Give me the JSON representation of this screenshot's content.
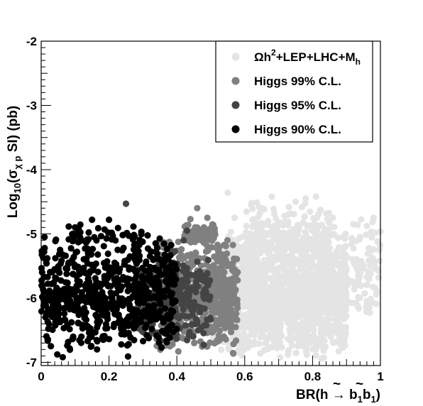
{
  "chart_data": {
    "type": "scatter",
    "title": "",
    "xlabel": {
      "prefix": "BR(h → ",
      "b1": "b",
      "sub1": "1",
      "b2": "b",
      "sub2": "1",
      "suffix": ")"
    },
    "ylabel": {
      "prefix": "Log",
      "sub": "10",
      "open": "(σ",
      "sub2": "χ p",
      "suffix": " SI) (pb)"
    },
    "xlim": [
      0,
      1
    ],
    "ylim": [
      -7.05,
      -2
    ],
    "x_ticks": [
      0,
      0.2,
      0.4,
      0.6,
      0.8,
      1
    ],
    "x_tick_labels": [
      "0",
      "0.2",
      "0.4",
      "0.6",
      "0.8",
      "1"
    ],
    "y_ticks": [
      -7,
      -6,
      -5,
      -4,
      -3,
      -2
    ],
    "y_tick_labels": [
      "-7",
      "-6",
      "-5",
      "-4",
      "-3",
      "-2"
    ],
    "grid": false,
    "legend_position": "top-right",
    "legend": [
      {
        "label_parts": [
          "Ω",
          "h",
          "2",
          "+LEP+LHC+M",
          "h"
        ],
        "color": "#e4e4e4"
      },
      {
        "label": "Higgs 99% C.L.",
        "color": "#808080"
      },
      {
        "label": "Higgs 95% C.L.",
        "color": "#444444"
      },
      {
        "label": "Higgs 90% C.L.",
        "color": "#000000"
      }
    ],
    "series": [
      {
        "name": "Ωh²+LEP+LHC+M_h",
        "color": "#e4e4e4",
        "regions": [
          {
            "x_range": [
              0.55,
              0.9
            ],
            "y_range": [
              -6.98,
              -4.9
            ],
            "count": 1500
          },
          {
            "x_range": [
              0.6,
              0.85
            ],
            "y_range": [
              -5.5,
              -4.5
            ],
            "count": 200
          },
          {
            "x_range": [
              0.85,
              1.0
            ],
            "y_range": [
              -6.4,
              -4.7
            ],
            "count": 120
          },
          {
            "x_range": [
              0.5,
              0.6
            ],
            "y_range": [
              -6.9,
              -5.0
            ],
            "count": 150
          }
        ],
        "outliers": [
          {
            "x": 0.55,
            "y": -4.36
          },
          {
            "x": 0.68,
            "y": -4.42
          },
          {
            "x": 0.78,
            "y": -4.45
          },
          {
            "x": 0.81,
            "y": -4.42
          },
          {
            "x": 0.75,
            "y": -4.5
          },
          {
            "x": 0.65,
            "y": -4.6
          },
          {
            "x": 0.92,
            "y": -4.85
          },
          {
            "x": 0.98,
            "y": -4.75
          },
          {
            "x": 0.94,
            "y": -5.05
          },
          {
            "x": 0.96,
            "y": -6.1
          },
          {
            "x": 0.99,
            "y": -5.55
          },
          {
            "x": 0.57,
            "y": -4.75
          }
        ]
      },
      {
        "name": "Higgs 99% C.L.",
        "color": "#808080",
        "regions": [
          {
            "x_range": [
              0.34,
              0.58
            ],
            "y_range": [
              -6.9,
              -5.0
            ],
            "count": 600
          },
          {
            "x_range": [
              0.42,
              0.52
            ],
            "y_range": [
              -5.2,
              -4.8
            ],
            "count": 50
          }
        ],
        "outliers": [
          {
            "x": 0.46,
            "y": -4.6
          },
          {
            "x": 0.44,
            "y": -4.77
          },
          {
            "x": 0.49,
            "y": -4.75
          }
        ]
      },
      {
        "name": "Higgs 95% C.L.",
        "color": "#444444",
        "regions": [
          {
            "x_range": [
              0.28,
              0.5
            ],
            "y_range": [
              -6.8,
              -5.2
            ],
            "count": 280
          }
        ],
        "outliers": [
          {
            "x": 0.25,
            "y": -4.53
          },
          {
            "x": 0.42,
            "y": -5.1
          },
          {
            "x": 0.43,
            "y": -4.95
          }
        ]
      },
      {
        "name": "Higgs 90% C.L.",
        "color": "#000000",
        "regions": [
          {
            "x_range": [
              0.0,
              0.4
            ],
            "y_range": [
              -6.95,
              -5.0
            ],
            "count": 700
          },
          {
            "x_range": [
              0.08,
              0.3
            ],
            "y_range": [
              -5.2,
              -4.8
            ],
            "count": 40
          }
        ],
        "outliers": [
          {
            "x": 0.15,
            "y": -4.78
          },
          {
            "x": 0.2,
            "y": -4.78
          },
          {
            "x": 0.01,
            "y": -5.05
          },
          {
            "x": 0.1,
            "y": -4.9
          }
        ]
      }
    ]
  }
}
